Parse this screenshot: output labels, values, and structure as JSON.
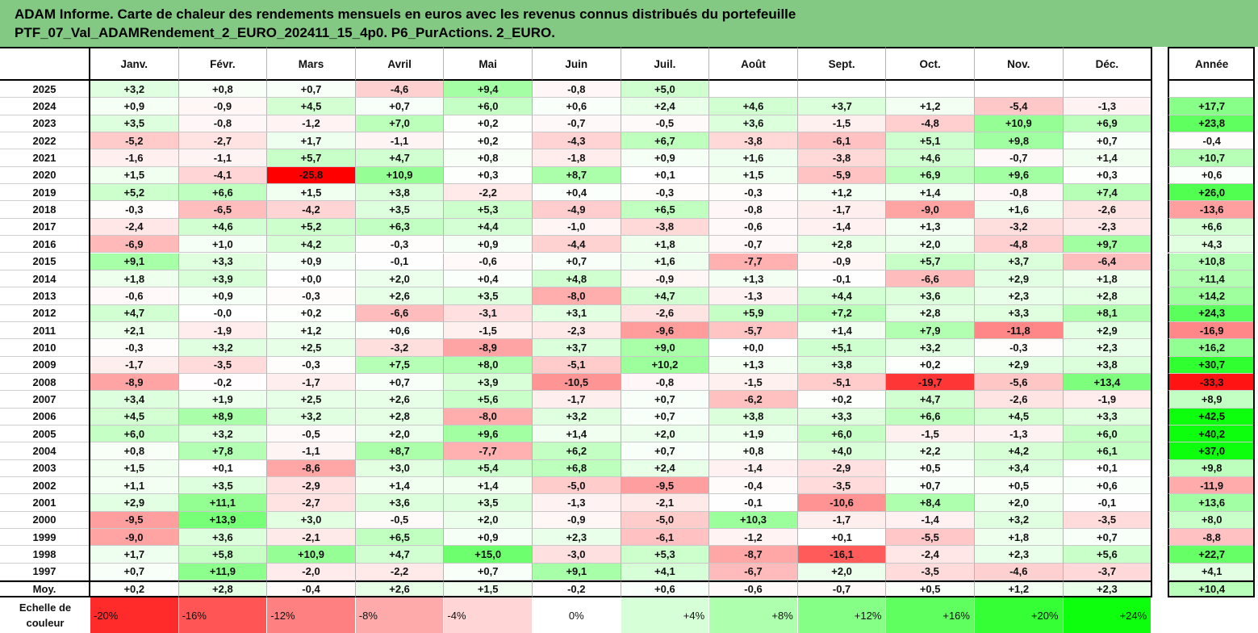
{
  "title": {
    "line1": "ADAM Informe. Carte de chaleur des rendements mensuels en euros avec les revenus connus distribués du portefeuille",
    "line2": "PTF_07_Val_ADAMRendement_2_EURO_202411_15_4p0. P6_PurActions. 2_EURO."
  },
  "chart_data": {
    "type": "heatmap",
    "columns": [
      "Janv.",
      "Févr.",
      "Mars",
      "Avril",
      "Mai",
      "Juin",
      "Juil.",
      "Août",
      "Sept.",
      "Oct.",
      "Nov.",
      "Déc."
    ],
    "annual_column": "Année",
    "rows": [
      {
        "year": "2025",
        "values": [
          "+3,2",
          "+0,8",
          "+0,7",
          "-4,6",
          "+9,4",
          "-0,8",
          "+5,0",
          "",
          "",
          "",
          "",
          ""
        ],
        "annual": ""
      },
      {
        "year": "2024",
        "values": [
          "+0,9",
          "-0,9",
          "+4,5",
          "+0,7",
          "+6,0",
          "+0,6",
          "+2,4",
          "+4,6",
          "+3,7",
          "+1,2",
          "-5,4",
          "-1,3"
        ],
        "annual": "+17,7"
      },
      {
        "year": "2023",
        "values": [
          "+3,5",
          "-0,8",
          "-1,2",
          "+7,0",
          "+0,2",
          "-0,7",
          "-0,5",
          "+3,6",
          "-1,5",
          "-4,8",
          "+10,9",
          "+6,9"
        ],
        "annual": "+23,8"
      },
      {
        "year": "2022",
        "values": [
          "-5,2",
          "-2,7",
          "+1,7",
          "-1,1",
          "+0,2",
          "-4,3",
          "+6,7",
          "-3,8",
          "-6,1",
          "+5,1",
          "+9,8",
          "+0,7"
        ],
        "annual": "-0,4"
      },
      {
        "year": "2021",
        "values": [
          "-1,6",
          "-1,1",
          "+5,7",
          "+4,7",
          "+0,8",
          "-1,8",
          "+0,9",
          "+1,6",
          "-3,8",
          "+4,6",
          "-0,7",
          "+1,4"
        ],
        "annual": "+10,7"
      },
      {
        "year": "2020",
        "values": [
          "+1,5",
          "-4,1",
          "-25,8",
          "+10,9",
          "+0,3",
          "+8,7",
          "+0,1",
          "+1,5",
          "-5,9",
          "+6,9",
          "+9,6",
          "+0,3"
        ],
        "annual": "+0,6"
      },
      {
        "year": "2019",
        "values": [
          "+5,2",
          "+6,6",
          "+1,5",
          "+3,8",
          "-2,2",
          "+0,4",
          "-0,3",
          "-0,3",
          "+1,2",
          "+1,4",
          "-0,8",
          "+7,4"
        ],
        "annual": "+26,0"
      },
      {
        "year": "2018",
        "values": [
          "-0,3",
          "-6,5",
          "-4,2",
          "+3,5",
          "+5,3",
          "-4,9",
          "+6,5",
          "-0,8",
          "-1,7",
          "-9,0",
          "+1,6",
          "-2,6"
        ],
        "annual": "-13,6"
      },
      {
        "year": "2017",
        "values": [
          "-2,4",
          "+4,6",
          "+5,2",
          "+6,3",
          "+4,4",
          "-1,0",
          "-3,8",
          "-0,6",
          "-1,4",
          "+1,3",
          "-3,2",
          "-2,3"
        ],
        "annual": "+6,6"
      },
      {
        "year": "2016",
        "values": [
          "-6,9",
          "+1,0",
          "+4,2",
          "-0,3",
          "+0,9",
          "-4,4",
          "+1,8",
          "-0,7",
          "+2,8",
          "+2,0",
          "-4,8",
          "+9,7"
        ],
        "annual": "+4,3"
      },
      {
        "year": "2015",
        "values": [
          "+9,1",
          "+3,3",
          "+0,9",
          "-0,1",
          "-0,6",
          "+0,7",
          "+1,6",
          "-7,7",
          "-0,9",
          "+5,7",
          "+3,7",
          "-6,4"
        ],
        "annual": "+10,8"
      },
      {
        "year": "2014",
        "values": [
          "+1,8",
          "+3,9",
          "+0,0",
          "+2,0",
          "+0,4",
          "+4,8",
          "-0,9",
          "+1,3",
          "-0,1",
          "-6,6",
          "+2,9",
          "+1,8"
        ],
        "annual": "+11,4"
      },
      {
        "year": "2013",
        "values": [
          "-0,6",
          "+0,9",
          "-0,3",
          "+2,6",
          "+3,5",
          "-8,0",
          "+4,7",
          "-1,3",
          "+4,4",
          "+3,6",
          "+2,3",
          "+2,8"
        ],
        "annual": "+14,2"
      },
      {
        "year": "2012",
        "values": [
          "+4,7",
          "-0,0",
          "+0,2",
          "-6,6",
          "-3,1",
          "+3,1",
          "-2,6",
          "+5,9",
          "+7,2",
          "+2,8",
          "+3,3",
          "+8,1"
        ],
        "annual": "+24,3"
      },
      {
        "year": "2011",
        "values": [
          "+2,1",
          "-1,9",
          "+1,2",
          "+0,6",
          "-1,5",
          "-2,3",
          "-9,6",
          "-5,7",
          "+1,4",
          "+7,9",
          "-11,8",
          "+2,9"
        ],
        "annual": "-16,9"
      },
      {
        "year": "2010",
        "values": [
          "-0,3",
          "+3,2",
          "+2,5",
          "-3,2",
          "-8,9",
          "+3,7",
          "+9,0",
          "+0,0",
          "+5,1",
          "+3,2",
          "-0,3",
          "+2,3"
        ],
        "annual": "+16,2"
      },
      {
        "year": "2009",
        "values": [
          "-1,7",
          "-3,5",
          "-0,3",
          "+7,5",
          "+8,0",
          "-5,1",
          "+10,2",
          "+1,3",
          "+3,8",
          "+0,2",
          "+2,9",
          "+3,8"
        ],
        "annual": "+30,7"
      },
      {
        "year": "2008",
        "values": [
          "-8,9",
          "-0,2",
          "-1,7",
          "+0,7",
          "+3,9",
          "-10,5",
          "-0,8",
          "-1,5",
          "-5,1",
          "-19,7",
          "-5,6",
          "+13,4"
        ],
        "annual": "-33,3"
      },
      {
        "year": "2007",
        "values": [
          "+3,4",
          "+1,9",
          "+2,5",
          "+2,6",
          "+5,6",
          "-1,7",
          "+0,7",
          "-6,2",
          "+0,2",
          "+4,7",
          "-2,6",
          "-1,9"
        ],
        "annual": "+8,9"
      },
      {
        "year": "2006",
        "values": [
          "+4,5",
          "+8,9",
          "+3,2",
          "+2,8",
          "-8,0",
          "+3,2",
          "+0,7",
          "+3,8",
          "+3,3",
          "+6,6",
          "+4,5",
          "+3,3"
        ],
        "annual": "+42,5"
      },
      {
        "year": "2005",
        "values": [
          "+6,0",
          "+3,2",
          "-0,5",
          "+2,0",
          "+9,6",
          "+1,4",
          "+2,0",
          "+1,9",
          "+6,0",
          "-1,5",
          "-1,3",
          "+6,0"
        ],
        "annual": "+40,2"
      },
      {
        "year": "2004",
        "values": [
          "+0,8",
          "+7,8",
          "-1,1",
          "+8,7",
          "-7,7",
          "+6,2",
          "+0,7",
          "+0,8",
          "+4,0",
          "+2,2",
          "+4,2",
          "+6,1"
        ],
        "annual": "+37,0"
      },
      {
        "year": "2003",
        "values": [
          "+1,5",
          "+0,1",
          "-8,6",
          "+3,0",
          "+5,4",
          "+6,8",
          "+2,4",
          "-1,4",
          "-2,9",
          "+0,5",
          "+3,4",
          "+0,1"
        ],
        "annual": "+9,8"
      },
      {
        "year": "2002",
        "values": [
          "+1,1",
          "+3,5",
          "-2,9",
          "+1,4",
          "+1,4",
          "-5,0",
          "-9,5",
          "-0,4",
          "-3,5",
          "+0,7",
          "+0,5",
          "+0,6"
        ],
        "annual": "-11,9"
      },
      {
        "year": "2001",
        "values": [
          "+2,9",
          "+11,1",
          "-2,7",
          "+3,6",
          "+3,5",
          "-1,3",
          "-2,1",
          "-0,1",
          "-10,6",
          "+8,4",
          "+2,0",
          "-0,1"
        ],
        "annual": "+13,6"
      },
      {
        "year": "2000",
        "values": [
          "-9,5",
          "+13,9",
          "+3,0",
          "-0,5",
          "+2,0",
          "-0,9",
          "-5,0",
          "+10,3",
          "-1,7",
          "-1,4",
          "+3,2",
          "-3,5"
        ],
        "annual": "+8,0"
      },
      {
        "year": "1999",
        "values": [
          "-9,0",
          "+3,6",
          "-2,1",
          "+6,5",
          "+0,9",
          "+2,3",
          "-6,1",
          "-1,2",
          "+0,1",
          "-5,5",
          "+1,8",
          "+0,7"
        ],
        "annual": "-8,8"
      },
      {
        "year": "1998",
        "values": [
          "+1,7",
          "+5,8",
          "+10,9",
          "+4,7",
          "+15,0",
          "-3,0",
          "+5,3",
          "-8,7",
          "-16,1",
          "-2,4",
          "+2,3",
          "+5,6"
        ],
        "annual": "+22,7"
      },
      {
        "year": "1997",
        "values": [
          "+0,7",
          "+11,9",
          "-2,0",
          "-2,2",
          "+0,7",
          "+9,1",
          "+4,1",
          "-6,7",
          "+2,0",
          "-3,5",
          "-4,6",
          "-3,7"
        ],
        "annual": "+4,1"
      }
    ],
    "average_row": {
      "label": "Moy.",
      "values": [
        "+0,2",
        "+2,8",
        "-0,4",
        "+2,6",
        "+1,5",
        "-0,2",
        "+0,6",
        "-0,6",
        "-0,7",
        "+0,5",
        "+1,2",
        "+2,3"
      ],
      "annual": "+10,4"
    },
    "color_scale": {
      "label_line1": "Echelle de",
      "label_line2": "couleur",
      "stops": [
        "-20%",
        "-16%",
        "-12%",
        "-8%",
        "-4%",
        "0%",
        "+4%",
        "+8%",
        "+12%",
        "+16%",
        "+20%",
        "+24%"
      ],
      "negative_color": "#ff0000",
      "neutral_color": "#ffffff",
      "positive_color": "#00ff00"
    }
  }
}
